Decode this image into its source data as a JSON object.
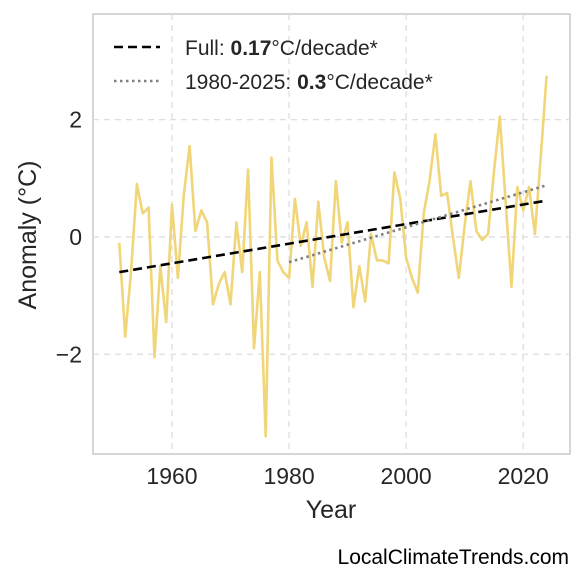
{
  "chart_data": {
    "type": "line",
    "xlabel": "Year",
    "ylabel": "Anomaly (°C)",
    "xlim": [
      1946.5,
      2028
    ],
    "ylim": [
      -3.7,
      3.8
    ],
    "x_ticks": [
      1960,
      1980,
      2000,
      2020
    ],
    "y_ticks": [
      -2,
      0,
      2
    ],
    "x_tick_labels": [
      "1960",
      "1980",
      "2000",
      "2020"
    ],
    "y_tick_labels": [
      "−2",
      "0",
      "2"
    ],
    "grid": true,
    "legend_position": "top-left",
    "series": [
      {
        "color": "#f0d679",
        "style": "solid",
        "x": [
          1951,
          1952,
          1953,
          1954,
          1955,
          1956,
          1957,
          1958,
          1959,
          1960,
          1961,
          1962,
          1963,
          1964,
          1965,
          1966,
          1967,
          1968,
          1969,
          1970,
          1971,
          1972,
          1973,
          1974,
          1975,
          1976,
          1977,
          1978,
          1979,
          1980,
          1981,
          1982,
          1983,
          1984,
          1985,
          1986,
          1987,
          1988,
          1989,
          1990,
          1991,
          1992,
          1993,
          1994,
          1995,
          1996,
          1997,
          1998,
          1999,
          2000,
          2001,
          2002,
          2003,
          2004,
          2005,
          2006,
          2007,
          2008,
          2009,
          2010,
          2011,
          2012,
          2013,
          2014,
          2015,
          2016,
          2017,
          2018,
          2019,
          2020,
          2021,
          2022,
          2023,
          2024
        ],
        "values": [
          -0.1,
          -1.7,
          -0.6,
          0.9,
          0.4,
          0.5,
          -2.05,
          -0.5,
          -1.45,
          0.55,
          -0.7,
          0.7,
          1.55,
          0.1,
          0.45,
          0.25,
          -1.15,
          -0.8,
          -0.6,
          -1.15,
          0.25,
          -0.6,
          1.15,
          -1.9,
          -0.6,
          -3.4,
          1.35,
          -0.4,
          -0.6,
          -0.7,
          0.65,
          -0.15,
          0.25,
          -0.85,
          0.6,
          -0.35,
          -0.75,
          0.95,
          -0.1,
          0.25,
          -1.2,
          -0.5,
          -1.1,
          0.05,
          -0.4,
          -0.4,
          -0.45,
          1.1,
          0.65,
          -0.35,
          -0.7,
          -0.95,
          0.4,
          0.95,
          1.75,
          0.7,
          0.75,
          0.0,
          -0.7,
          0.2,
          0.95,
          0.1,
          -0.05,
          0.05,
          1.1,
          2.05,
          0.6,
          -0.85,
          0.85,
          0.45,
          0.85,
          0.05,
          1.35,
          2.75
        ]
      },
      {
        "name": "Full: 0.17°C/decade*",
        "color": "#000000",
        "style": "dashed",
        "x": [
          1951,
          2024
        ],
        "values": [
          -0.6,
          0.62
        ]
      },
      {
        "name": "1980-2025: 0.3°C/decade*",
        "color": "#808080",
        "style": "dotted",
        "x": [
          1980,
          2024
        ],
        "values": [
          -0.43,
          0.88
        ]
      }
    ]
  },
  "legend": {
    "full_prefix": "Full: ",
    "full_value": "0.17",
    "full_suffix": "°C/decade*",
    "recent_prefix": "1980-2025: ",
    "recent_value": "0.3",
    "recent_suffix": "°C/decade*"
  },
  "credit": "LocalClimateTrends.com"
}
